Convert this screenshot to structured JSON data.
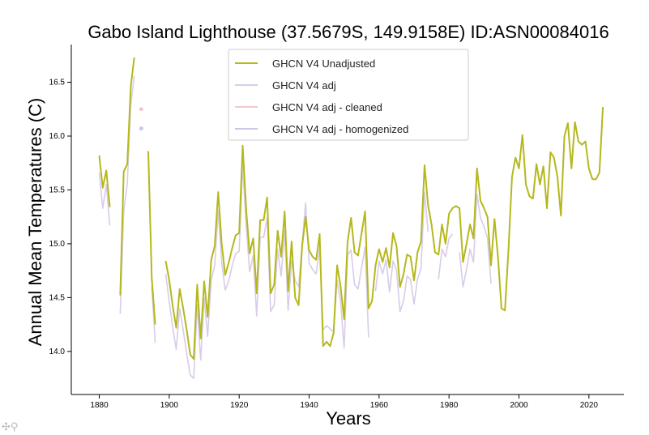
{
  "chart_data": {
    "type": "line",
    "title": "Gabo Island Lighthouse (37.5679S, 149.9158E) ID:ASN00084016",
    "xlabel": "Years",
    "ylabel": "Annual Mean Temperatures (C)",
    "xlim": [
      1872,
      2030
    ],
    "ylim": [
      13.6,
      16.85
    ],
    "xticks": [
      1880,
      1900,
      1920,
      1940,
      1960,
      1980,
      2000,
      2020
    ],
    "yticks": [
      14.0,
      14.5,
      15.0,
      15.5,
      16.0,
      16.5
    ],
    "legend": [
      "GHCN V4 Unadjusted",
      "GHCN V4 adj",
      "GHCN V4 adj - cleaned",
      "GHCN V4 adj - homogenized"
    ],
    "series": [
      {
        "name": "GHCN V4 Unadjusted",
        "color": "#b5b81c",
        "points": [
          [
            1880,
            15.82
          ],
          [
            1881,
            15.52
          ],
          [
            1882,
            15.68
          ],
          [
            1883,
            15.34
          ],
          [
            1884,
            null
          ],
          [
            1886,
            14.52
          ],
          [
            1887,
            15.67
          ],
          [
            1888,
            15.74
          ],
          [
            1889,
            16.46
          ],
          [
            1890,
            16.73
          ],
          [
            1891,
            null
          ],
          [
            1894,
            15.86
          ],
          [
            1895,
            14.68
          ],
          [
            1896,
            14.25
          ],
          [
            1897,
            null
          ],
          [
            1899,
            14.84
          ],
          [
            1900,
            14.66
          ],
          [
            1901,
            14.42
          ],
          [
            1902,
            14.22
          ],
          [
            1903,
            14.58
          ],
          [
            1904,
            14.4
          ],
          [
            1905,
            14.2
          ],
          [
            1906,
            13.97
          ],
          [
            1907,
            13.93
          ],
          [
            1908,
            14.62
          ],
          [
            1909,
            14.12
          ],
          [
            1910,
            14.65
          ],
          [
            1911,
            14.32
          ],
          [
            1912,
            14.85
          ],
          [
            1913,
            14.98
          ],
          [
            1914,
            15.48
          ],
          [
            1915,
            15.0
          ],
          [
            1916,
            14.71
          ],
          [
            1917,
            14.82
          ],
          [
            1918,
            14.96
          ],
          [
            1919,
            15.08
          ],
          [
            1920,
            15.1
          ],
          [
            1921,
            15.91
          ],
          [
            1922,
            15.32
          ],
          [
            1923,
            14.91
          ],
          [
            1924,
            15.05
          ],
          [
            1925,
            14.54
          ],
          [
            1926,
            15.22
          ],
          [
            1927,
            15.22
          ],
          [
            1928,
            15.43
          ],
          [
            1929,
            14.54
          ],
          [
            1930,
            14.62
          ],
          [
            1931,
            15.12
          ],
          [
            1932,
            14.88
          ],
          [
            1933,
            15.3
          ],
          [
            1934,
            14.56
          ],
          [
            1935,
            15.02
          ],
          [
            1936,
            14.5
          ],
          [
            1937,
            14.43
          ],
          [
            1938,
            14.98
          ],
          [
            1939,
            15.25
          ],
          [
            1940,
            14.94
          ],
          [
            1941,
            14.88
          ],
          [
            1942,
            14.85
          ],
          [
            1943,
            15.09
          ],
          [
            1944,
            14.05
          ],
          [
            1945,
            14.09
          ],
          [
            1946,
            14.05
          ],
          [
            1947,
            14.17
          ],
          [
            1948,
            14.8
          ],
          [
            1949,
            14.6
          ],
          [
            1950,
            14.3
          ],
          [
            1951,
            15.02
          ],
          [
            1952,
            15.24
          ],
          [
            1953,
            14.92
          ],
          [
            1954,
            14.89
          ],
          [
            1955,
            15.1
          ],
          [
            1956,
            15.3
          ],
          [
            1957,
            14.4
          ],
          [
            1958,
            14.47
          ],
          [
            1959,
            14.8
          ],
          [
            1960,
            14.95
          ],
          [
            1961,
            14.83
          ],
          [
            1962,
            14.96
          ],
          [
            1963,
            14.78
          ],
          [
            1964,
            15.1
          ],
          [
            1965,
            14.98
          ],
          [
            1966,
            14.6
          ],
          [
            1967,
            14.72
          ],
          [
            1968,
            14.9
          ],
          [
            1969,
            14.88
          ],
          [
            1970,
            14.66
          ],
          [
            1971,
            14.92
          ],
          [
            1972,
            15.02
          ],
          [
            1973,
            15.73
          ],
          [
            1974,
            15.36
          ],
          [
            1975,
            15.18
          ],
          [
            1976,
            14.92
          ],
          [
            1977,
            14.9
          ],
          [
            1978,
            15.18
          ],
          [
            1979,
            15.0
          ],
          [
            1980,
            15.28
          ],
          [
            1981,
            15.33
          ],
          [
            1982,
            15.35
          ],
          [
            1983,
            15.33
          ],
          [
            1984,
            14.83
          ],
          [
            1985,
            15.0
          ],
          [
            1986,
            15.18
          ],
          [
            1987,
            15.05
          ],
          [
            1988,
            15.7
          ],
          [
            1989,
            15.4
          ],
          [
            1990,
            15.33
          ],
          [
            1991,
            15.25
          ],
          [
            1992,
            14.8
          ],
          [
            1993,
            15.23
          ],
          [
            1994,
            14.88
          ],
          [
            1995,
            14.4
          ],
          [
            1996,
            14.38
          ],
          [
            1997,
            14.95
          ],
          [
            1998,
            15.62
          ],
          [
            1999,
            15.8
          ],
          [
            2000,
            15.7
          ],
          [
            2001,
            16.01
          ],
          [
            2002,
            15.55
          ],
          [
            2003,
            15.44
          ],
          [
            2004,
            15.42
          ],
          [
            2005,
            15.74
          ],
          [
            2006,
            15.55
          ],
          [
            2007,
            15.72
          ],
          [
            2008,
            15.33
          ],
          [
            2009,
            15.85
          ],
          [
            2010,
            15.8
          ],
          [
            2011,
            15.62
          ],
          [
            2012,
            15.26
          ],
          [
            2013,
            16.0
          ],
          [
            2014,
            16.12
          ],
          [
            2015,
            15.7
          ],
          [
            2016,
            16.13
          ],
          [
            2017,
            15.95
          ],
          [
            2018,
            15.92
          ],
          [
            2019,
            15.95
          ],
          [
            2020,
            15.7
          ],
          [
            2021,
            15.6
          ],
          [
            2022,
            15.6
          ],
          [
            2023,
            15.66
          ],
          [
            2024,
            16.27
          ]
        ]
      },
      {
        "name": "GHCN V4 adj",
        "color": "#d8cce8",
        "points": [
          [
            1880,
            15.66
          ],
          [
            1881,
            15.33
          ],
          [
            1882,
            15.55
          ],
          [
            1883,
            15.17
          ],
          [
            1884,
            null
          ],
          [
            1886,
            14.35
          ],
          [
            1887,
            15.3
          ],
          [
            1888,
            15.56
          ],
          [
            1889,
            16.29
          ],
          [
            1890,
            16.56
          ],
          [
            1891,
            null
          ],
          [
            1895,
            14.6
          ],
          [
            1896,
            14.08
          ],
          [
            1897,
            null
          ],
          [
            1899,
            14.72
          ],
          [
            1900,
            14.46
          ],
          [
            1901,
            14.22
          ],
          [
            1902,
            14.02
          ],
          [
            1903,
            14.4
          ],
          [
            1904,
            14.2
          ],
          [
            1905,
            13.98
          ],
          [
            1906,
            13.78
          ],
          [
            1907,
            13.75
          ],
          [
            1908,
            14.43
          ],
          [
            1909,
            13.92
          ],
          [
            1910,
            14.5
          ],
          [
            1911,
            14.14
          ],
          [
            1912,
            14.66
          ],
          [
            1913,
            14.8
          ],
          [
            1914,
            15.3
          ],
          [
            1915,
            14.83
          ],
          [
            1916,
            14.57
          ],
          [
            1917,
            14.65
          ],
          [
            1918,
            14.8
          ],
          [
            1919,
            14.91
          ],
          [
            1920,
            14.93
          ],
          [
            1921,
            15.73
          ],
          [
            1922,
            15.17
          ],
          [
            1923,
            14.74
          ],
          [
            1924,
            14.89
          ],
          [
            1925,
            14.33
          ],
          [
            1926,
            15.06
          ],
          [
            1927,
            15.06
          ],
          [
            1928,
            15.24
          ],
          [
            1929,
            14.37
          ],
          [
            1930,
            14.43
          ],
          [
            1931,
            14.95
          ],
          [
            1932,
            14.7
          ],
          [
            1933,
            15.12
          ],
          [
            1934,
            14.38
          ],
          [
            1935,
            14.84
          ],
          [
            1936,
            14.66
          ],
          [
            1937,
            14.6
          ],
          [
            1938,
            15.0
          ],
          [
            1939,
            15.38
          ],
          [
            1940,
            14.82
          ],
          [
            1941,
            14.76
          ],
          [
            1942,
            14.72
          ],
          [
            1943,
            14.96
          ],
          [
            1944,
            14.2
          ],
          [
            1945,
            14.24
          ],
          [
            1946,
            14.21
          ],
          [
            1947,
            14.18
          ],
          [
            1948,
            14.66
          ],
          [
            1949,
            14.46
          ],
          [
            1950,
            14.03
          ],
          [
            1951,
            14.9
          ],
          [
            1952,
            14.94
          ],
          [
            1953,
            14.62
          ],
          [
            1954,
            14.58
          ],
          [
            1955,
            14.78
          ],
          [
            1956,
            14.97
          ],
          [
            1957,
            14.13
          ],
          [
            1958,
            null
          ],
          [
            1959,
            14.56
          ],
          [
            1960,
            14.84
          ],
          [
            1961,
            14.72
          ],
          [
            1962,
            14.85
          ],
          [
            1963,
            14.55
          ],
          [
            1964,
            14.84
          ],
          [
            1965,
            14.76
          ],
          [
            1966,
            14.37
          ],
          [
            1967,
            14.47
          ],
          [
            1968,
            14.7
          ],
          [
            1969,
            14.67
          ],
          [
            1970,
            14.44
          ],
          [
            1971,
            14.67
          ],
          [
            1972,
            14.77
          ],
          [
            1973,
            15.48
          ],
          [
            1974,
            15.11
          ],
          [
            1975,
            null
          ],
          [
            1977,
            14.67
          ],
          [
            1978,
            14.95
          ],
          [
            1979,
            14.88
          ],
          [
            1980,
            15.05
          ],
          [
            1981,
            15.09
          ],
          [
            1982,
            null
          ],
          [
            1983,
            14.92
          ],
          [
            1984,
            14.6
          ],
          [
            1985,
            14.76
          ],
          [
            1986,
            14.95
          ],
          [
            1987,
            14.83
          ],
          [
            1988,
            15.46
          ],
          [
            1989,
            15.24
          ],
          [
            1990,
            15.16
          ],
          [
            1991,
            15.05
          ],
          [
            1992,
            14.63
          ],
          [
            1993,
            null
          ]
        ]
      },
      {
        "name": "GHCN V4 adj - cleaned",
        "color": "#f2c8cc",
        "points": [
          [
            1892,
            16.25
          ]
        ]
      },
      {
        "name": "GHCN V4 adj - homogenized",
        "color": "#c8c8e8",
        "points": [
          [
            1892,
            16.07
          ]
        ]
      }
    ]
  },
  "toolbar": {
    "pan_zoom_icons": "✣⚲"
  }
}
